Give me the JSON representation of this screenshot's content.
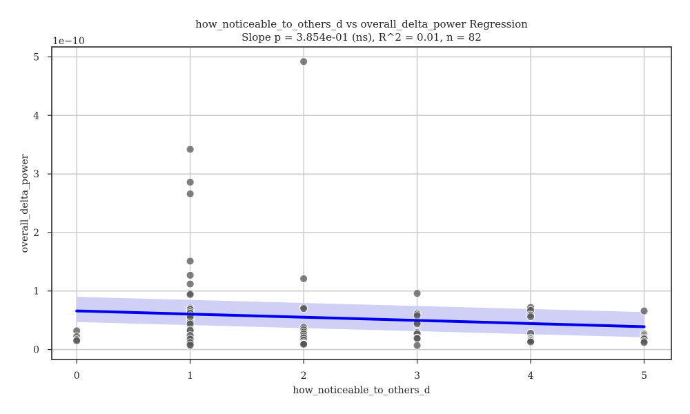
{
  "chart_data": {
    "type": "scatter",
    "title": "how_noticeable_to_others_d vs overall_delta_power Regression",
    "subtitle": "Slope p = 3.854e-01 (ns), R^2 = 0.01, n = 82",
    "xlabel": "how_noticeable_to_others_d",
    "ylabel": "overall_delta_power",
    "y_offset_label": "1e−10",
    "xlim": [
      -0.22,
      5.24
    ],
    "ylim": [
      -0.17,
      5.17
    ],
    "xticks": [
      0,
      1,
      2,
      3,
      4,
      5
    ],
    "yticks": [
      0,
      1,
      2,
      3,
      4,
      5
    ],
    "grid": true,
    "point_color": "#555555",
    "line_color": "#0000ee",
    "band_color": "#c8c8f6",
    "regression": {
      "x": [
        0,
        5
      ],
      "y": [
        0.66,
        0.39
      ],
      "ci_upper": [
        0.9,
        0.64
      ],
      "ci_lower": [
        0.47,
        0.21
      ]
    },
    "points": [
      {
        "x": 0,
        "y": 0.32
      },
      {
        "x": 0,
        "y": 0.22
      },
      {
        "x": 0,
        "y": 0.17
      },
      {
        "x": 0,
        "y": 0.15
      },
      {
        "x": 1,
        "y": 3.42
      },
      {
        "x": 1,
        "y": 2.86
      },
      {
        "x": 1,
        "y": 2.66
      },
      {
        "x": 1,
        "y": 1.51
      },
      {
        "x": 1,
        "y": 1.27
      },
      {
        "x": 1,
        "y": 1.12
      },
      {
        "x": 1,
        "y": 0.96
      },
      {
        "x": 1,
        "y": 0.94
      },
      {
        "x": 1,
        "y": 0.71
      },
      {
        "x": 1,
        "y": 0.69
      },
      {
        "x": 1,
        "y": 0.65
      },
      {
        "x": 1,
        "y": 0.62
      },
      {
        "x": 1,
        "y": 0.58
      },
      {
        "x": 1,
        "y": 0.52
      },
      {
        "x": 1,
        "y": 0.47
      },
      {
        "x": 1,
        "y": 0.43
      },
      {
        "x": 1,
        "y": 0.39
      },
      {
        "x": 1,
        "y": 0.35
      },
      {
        "x": 1,
        "y": 0.31
      },
      {
        "x": 1,
        "y": 0.28
      },
      {
        "x": 1,
        "y": 0.25
      },
      {
        "x": 1,
        "y": 0.22
      },
      {
        "x": 1,
        "y": 0.2
      },
      {
        "x": 1,
        "y": 0.17
      },
      {
        "x": 1,
        "y": 0.15
      },
      {
        "x": 1,
        "y": 0.13
      },
      {
        "x": 1,
        "y": 0.11
      },
      {
        "x": 1,
        "y": 0.09
      },
      {
        "x": 1,
        "y": 0.06
      },
      {
        "x": 1,
        "y": 0.56
      },
      {
        "x": 1,
        "y": 0.44
      },
      {
        "x": 1,
        "y": 0.33
      },
      {
        "x": 1,
        "y": 0.24
      },
      {
        "x": 1,
        "y": 0.18
      },
      {
        "x": 1,
        "y": 0.12
      },
      {
        "x": 1,
        "y": 0.08
      },
      {
        "x": 2,
        "y": 4.92
      },
      {
        "x": 2,
        "y": 1.21
      },
      {
        "x": 2,
        "y": 0.72
      },
      {
        "x": 2,
        "y": 0.7
      },
      {
        "x": 2,
        "y": 0.38
      },
      {
        "x": 2,
        "y": 0.34
      },
      {
        "x": 2,
        "y": 0.3
      },
      {
        "x": 2,
        "y": 0.27
      },
      {
        "x": 2,
        "y": 0.23
      },
      {
        "x": 2,
        "y": 0.2
      },
      {
        "x": 2,
        "y": 0.16
      },
      {
        "x": 2,
        "y": 0.12
      },
      {
        "x": 2,
        "y": 0.1
      },
      {
        "x": 2,
        "y": 0.09
      },
      {
        "x": 3,
        "y": 0.96
      },
      {
        "x": 3,
        "y": 0.61
      },
      {
        "x": 3,
        "y": 0.58
      },
      {
        "x": 3,
        "y": 0.46
      },
      {
        "x": 3,
        "y": 0.44
      },
      {
        "x": 3,
        "y": 0.29
      },
      {
        "x": 3,
        "y": 0.27
      },
      {
        "x": 3,
        "y": 0.2
      },
      {
        "x": 3,
        "y": 0.19
      },
      {
        "x": 3,
        "y": 0.07
      },
      {
        "x": 4,
        "y": 0.72
      },
      {
        "x": 4,
        "y": 0.67
      },
      {
        "x": 4,
        "y": 0.59
      },
      {
        "x": 4,
        "y": 0.56
      },
      {
        "x": 4,
        "y": 0.28
      },
      {
        "x": 4,
        "y": 0.2
      },
      {
        "x": 4,
        "y": 0.18
      },
      {
        "x": 4,
        "y": 0.16
      },
      {
        "x": 4,
        "y": 0.15
      },
      {
        "x": 4,
        "y": 0.13
      },
      {
        "x": 5,
        "y": 0.66
      },
      {
        "x": 5,
        "y": 0.27
      },
      {
        "x": 5,
        "y": 0.25
      },
      {
        "x": 5,
        "y": 0.22
      },
      {
        "x": 5,
        "y": 0.2
      },
      {
        "x": 5,
        "y": 0.18
      },
      {
        "x": 5,
        "y": 0.14
      },
      {
        "x": 5,
        "y": 0.12
      }
    ]
  }
}
